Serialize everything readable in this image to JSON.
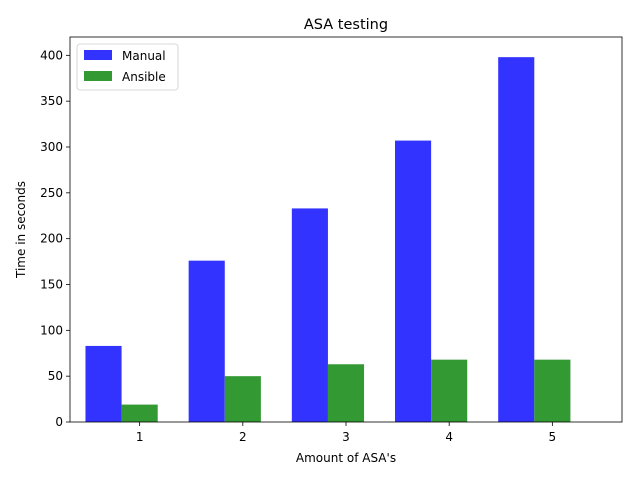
{
  "chart_data": {
    "type": "bar",
    "title": "ASA testing",
    "xlabel": "Amount of ASA's",
    "ylabel": "Time in seconds",
    "categories": [
      "1",
      "2",
      "3",
      "4",
      "5"
    ],
    "series": [
      {
        "name": "Manual",
        "values": [
          83,
          176,
          233,
          307,
          398
        ],
        "color": "#3333ff"
      },
      {
        "name": "Ansible",
        "values": [
          19,
          50,
          63,
          68,
          68
        ],
        "color": "#339933"
      }
    ],
    "ylim": [
      0,
      420
    ],
    "yticks": [
      0,
      50,
      100,
      150,
      200,
      250,
      300,
      350,
      400
    ],
    "legend": "top-left",
    "grid": false
  }
}
